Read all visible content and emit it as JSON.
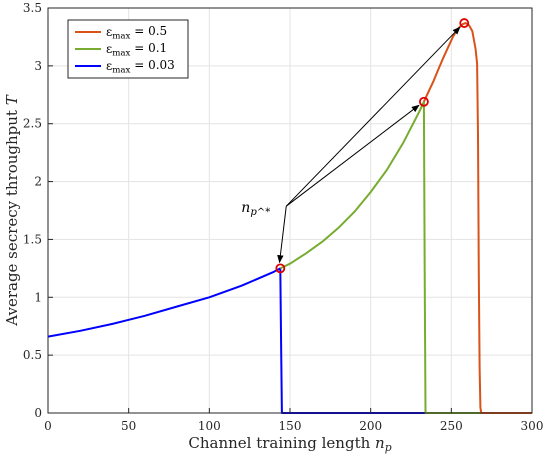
{
  "chart_data": {
    "type": "line",
    "xlabel": "Channel training length n_p",
    "ylabel": "Average secrecy throughput T",
    "xlim": [
      0,
      300
    ],
    "ylim": [
      0,
      3.5
    ],
    "xticks": [
      0,
      50,
      100,
      150,
      200,
      250,
      300
    ],
    "yticks": [
      0,
      0.5,
      1,
      1.5,
      2,
      2.5,
      3,
      3.5
    ],
    "grid": true,
    "legend_position": "top-left",
    "series": [
      {
        "name": "ε_max = 0.5",
        "color": "#d95319",
        "x": [
          233,
          236,
          239,
          242,
          245,
          248,
          251,
          254,
          257,
          259,
          261,
          263,
          265,
          266,
          266.5,
          267,
          267.5,
          268,
          268.5,
          300
        ],
        "y": [
          2.69,
          2.78,
          2.87,
          2.97,
          3.07,
          3.16,
          3.25,
          3.32,
          3.36,
          3.37,
          3.35,
          3.3,
          3.15,
          3.02,
          2.4,
          1.2,
          0.4,
          0.05,
          0,
          0
        ]
      },
      {
        "name": "ε_max = 0.1",
        "color": "#77ac30",
        "x": [
          144,
          150,
          160,
          170,
          180,
          190,
          200,
          210,
          220,
          230,
          233,
          233.5,
          234,
          300
        ],
        "y": [
          1.25,
          1.29,
          1.38,
          1.48,
          1.6,
          1.74,
          1.91,
          2.1,
          2.33,
          2.6,
          2.69,
          1.2,
          0,
          0
        ]
      },
      {
        "name": "ε_max = 0.03",
        "color": "#0000ff",
        "x": [
          0,
          20,
          40,
          60,
          80,
          100,
          120,
          140,
          144,
          144.5,
          145,
          300
        ],
        "y": [
          0.66,
          0.71,
          0.77,
          0.84,
          0.92,
          1.0,
          1.1,
          1.22,
          1.25,
          0.6,
          0,
          0
        ]
      }
    ],
    "optimal_points": [
      {
        "x": 144,
        "y": 1.25
      },
      {
        "x": 233,
        "y": 2.69
      },
      {
        "x": 258,
        "y": 3.37
      }
    ],
    "annotation": {
      "label": "n_p^*",
      "anchor": {
        "x": 139,
        "y": 1.77
      },
      "targets": [
        {
          "x": 144,
          "y": 1.25
        },
        {
          "x": 233,
          "y": 2.69
        },
        {
          "x": 258,
          "y": 3.37
        }
      ]
    }
  }
}
